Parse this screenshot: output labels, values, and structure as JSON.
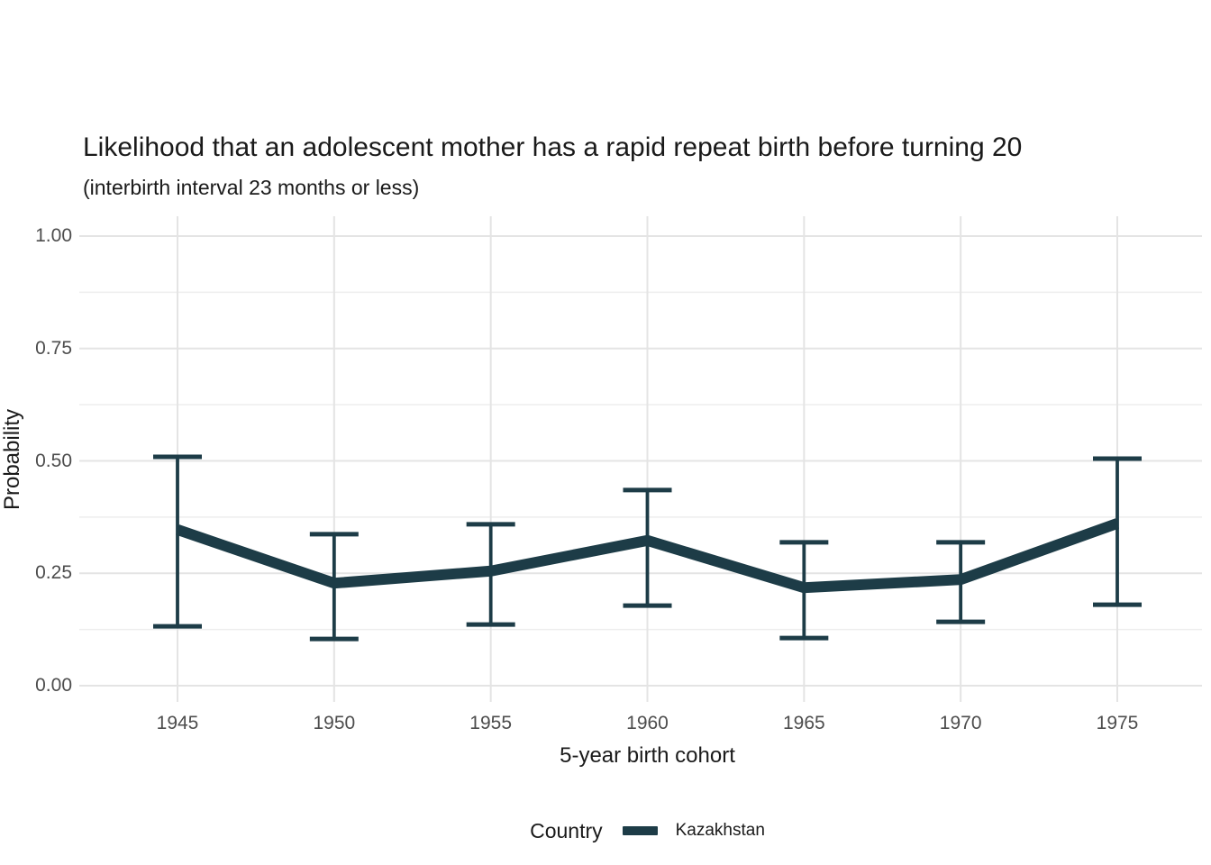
{
  "title": "Likelihood that an adolescent mother has a rapid repeat birth before turning 20",
  "subtitle": "(interbirth interval 23 months or less)",
  "chart_data": {
    "type": "line",
    "title": "Likelihood that an adolescent mother has a rapid repeat birth before turning 20",
    "subtitle": "(interbirth interval 23 months or less)",
    "xlabel": "5-year birth cohort",
    "ylabel": "Probability",
    "x_domain": [
      1945,
      1975
    ],
    "ylim": [
      0,
      1
    ],
    "x_ticks": [
      1945,
      1950,
      1955,
      1960,
      1965,
      1970,
      1975
    ],
    "y_tick_values": [
      0,
      0.25,
      0.5,
      0.75,
      1
    ],
    "y_tick_labels": [
      "0.00",
      "0.25",
      "0.50",
      "0.75",
      "1.00"
    ],
    "y_minor_gridlines": [
      0.125,
      0.375,
      0.625,
      0.875
    ],
    "grid": "horizontal major+minor, vertical major only",
    "legend_position": "bottom",
    "error_bars": true,
    "colors": {
      "series": "#1d3c47",
      "grid_major": "#e4e4e4",
      "grid_minor": "#eeeeee",
      "tick_label": "#4d4d4d",
      "text": "#1a1a1a",
      "background": "#ffffff"
    },
    "series": [
      {
        "name": "Kazakhstan",
        "color": "#1d3c47",
        "x": [
          1945,
          1950,
          1955,
          1960,
          1965,
          1970,
          1975
        ],
        "y": [
          0.347,
          0.228,
          0.255,
          0.323,
          0.218,
          0.236,
          0.361
        ],
        "ci_low": [
          0.132,
          0.104,
          0.136,
          0.178,
          0.106,
          0.142,
          0.18
        ],
        "ci_high": [
          0.509,
          0.337,
          0.359,
          0.435,
          0.319,
          0.319,
          0.505
        ]
      }
    ]
  },
  "legend": {
    "title": "Country",
    "items": [
      {
        "label": "Kazakhstan",
        "color": "#1d3c47"
      }
    ]
  }
}
